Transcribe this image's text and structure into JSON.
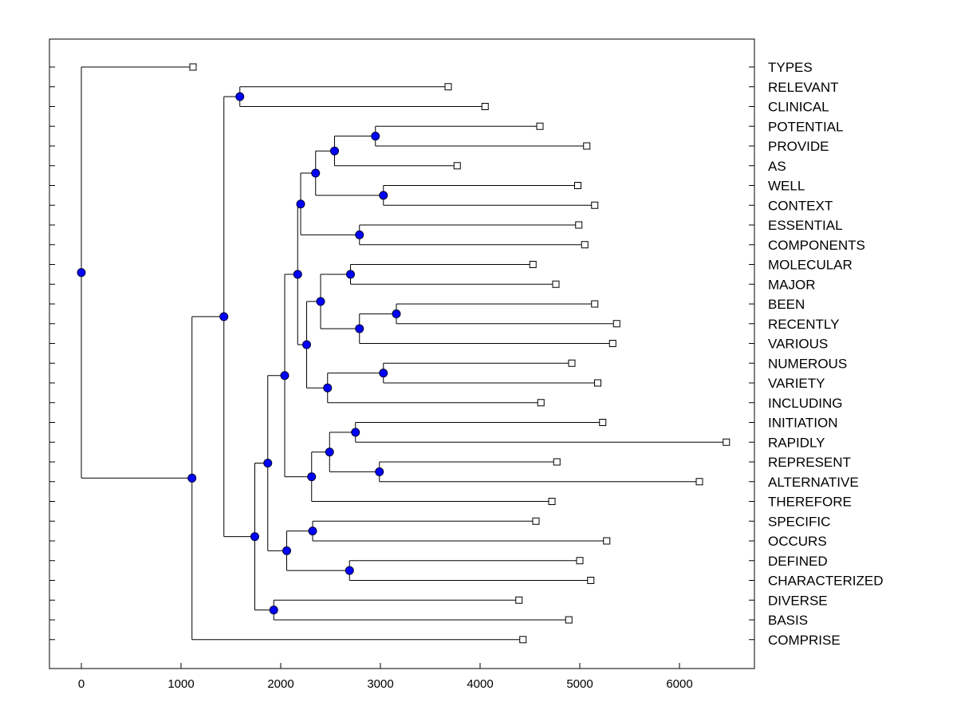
{
  "chart_data": {
    "type": "dendrogram",
    "title": "",
    "xlabel": "",
    "ylabel": "",
    "xlim": [
      -320,
      6780
    ],
    "x_ticks": [
      0,
      1000,
      2000,
      3000,
      4000,
      5000,
      6000
    ],
    "grid": false,
    "colors": {
      "node_fill": "#0000ff",
      "line": "#000000",
      "leaf_fill": "#ffffff"
    },
    "leaves": [
      {
        "label": "TYPES",
        "value": 1120
      },
      {
        "label": "RELEVANT",
        "value": 3680
      },
      {
        "label": "CLINICAL",
        "value": 4050
      },
      {
        "label": "POTENTIAL",
        "value": 4600
      },
      {
        "label": "PROVIDE",
        "value": 5070
      },
      {
        "label": "AS",
        "value": 3770
      },
      {
        "label": "WELL",
        "value": 4980
      },
      {
        "label": "CONTEXT",
        "value": 5150
      },
      {
        "label": "ESSENTIAL",
        "value": 4990
      },
      {
        "label": "COMPONENTS",
        "value": 5050
      },
      {
        "label": "MOLECULAR",
        "value": 4530
      },
      {
        "label": "MAJOR",
        "value": 4760
      },
      {
        "label": "BEEN",
        "value": 5150
      },
      {
        "label": "RECENTLY",
        "value": 5370
      },
      {
        "label": "VARIOUS",
        "value": 5330
      },
      {
        "label": "NUMEROUS",
        "value": 4920
      },
      {
        "label": "VARIETY",
        "value": 5180
      },
      {
        "label": "INCLUDING",
        "value": 4610
      },
      {
        "label": "INITIATION",
        "value": 5230
      },
      {
        "label": "RAPIDLY",
        "value": 6470
      },
      {
        "label": "REPRESENT",
        "value": 4770
      },
      {
        "label": "ALTERNATIVE",
        "value": 6200
      },
      {
        "label": "THEREFORE",
        "value": 4720
      },
      {
        "label": "SPECIFIC",
        "value": 4560
      },
      {
        "label": "OCCURS",
        "value": 5270
      },
      {
        "label": "DEFINED",
        "value": 5000
      },
      {
        "label": "CHARACTERIZED",
        "value": 5110
      },
      {
        "label": "DIVERSE",
        "value": 4390
      },
      {
        "label": "BASIS",
        "value": 4890
      },
      {
        "label": "COMPRISE",
        "value": 4430
      }
    ],
    "merges": [
      {
        "id": "n1",
        "value": 2950,
        "children": [
          "POTENTIAL",
          "PROVIDE"
        ]
      },
      {
        "id": "n2",
        "value": 2540,
        "children": [
          "n1",
          "AS"
        ]
      },
      {
        "id": "n3",
        "value": 3030,
        "children": [
          "WELL",
          "CONTEXT"
        ]
      },
      {
        "id": "n4",
        "value": 2350,
        "children": [
          "n2",
          "n3"
        ]
      },
      {
        "id": "n5",
        "value": 2790,
        "children": [
          "ESSENTIAL",
          "COMPONENTS"
        ]
      },
      {
        "id": "n6",
        "value": 2200,
        "children": [
          "n4",
          "n5"
        ]
      },
      {
        "id": "n7",
        "value": 2700,
        "children": [
          "MOLECULAR",
          "MAJOR"
        ]
      },
      {
        "id": "n8",
        "value": 3160,
        "children": [
          "BEEN",
          "RECENTLY"
        ]
      },
      {
        "id": "n9",
        "value": 2790,
        "children": [
          "n8",
          "VARIOUS"
        ]
      },
      {
        "id": "n10",
        "value": 2400,
        "children": [
          "n7",
          "n9"
        ]
      },
      {
        "id": "n11",
        "value": 3030,
        "children": [
          "NUMEROUS",
          "VARIETY"
        ]
      },
      {
        "id": "n12",
        "value": 2470,
        "children": [
          "n11",
          "INCLUDING"
        ]
      },
      {
        "id": "n13",
        "value": 2260,
        "children": [
          "n10",
          "n12"
        ]
      },
      {
        "id": "n14",
        "value": 2170,
        "children": [
          "n6",
          "n13"
        ]
      },
      {
        "id": "n15",
        "value": 2750,
        "children": [
          "INITIATION",
          "RAPIDLY"
        ]
      },
      {
        "id": "n16",
        "value": 2990,
        "children": [
          "REPRESENT",
          "ALTERNATIVE"
        ]
      },
      {
        "id": "n17",
        "value": 2490,
        "children": [
          "n15",
          "n16"
        ]
      },
      {
        "id": "n18",
        "value": 2310,
        "children": [
          "n17",
          "THEREFORE"
        ]
      },
      {
        "id": "n19",
        "value": 2040,
        "children": [
          "n14",
          "n18"
        ]
      },
      {
        "id": "n20",
        "value": 2320,
        "children": [
          "SPECIFIC",
          "OCCURS"
        ]
      },
      {
        "id": "n21",
        "value": 2690,
        "children": [
          "DEFINED",
          "CHARACTERIZED"
        ]
      },
      {
        "id": "n22",
        "value": 2060,
        "children": [
          "n20",
          "n21"
        ]
      },
      {
        "id": "n23",
        "value": 1870,
        "children": [
          "n19",
          "n22"
        ]
      },
      {
        "id": "n24",
        "value": 1930,
        "children": [
          "DIVERSE",
          "BASIS"
        ]
      },
      {
        "id": "n25",
        "value": 1740,
        "children": [
          "n23",
          "n24"
        ]
      },
      {
        "id": "n26",
        "value": 1590,
        "children": [
          "RELEVANT",
          "CLINICAL"
        ]
      },
      {
        "id": "n27",
        "value": 1430,
        "children": [
          "n26",
          "n25"
        ]
      },
      {
        "id": "n28",
        "value": 1110,
        "children": [
          "n27",
          "COMPRISE"
        ]
      },
      {
        "id": "n29",
        "value": 0,
        "children": [
          "TYPES",
          "n28"
        ]
      }
    ]
  }
}
